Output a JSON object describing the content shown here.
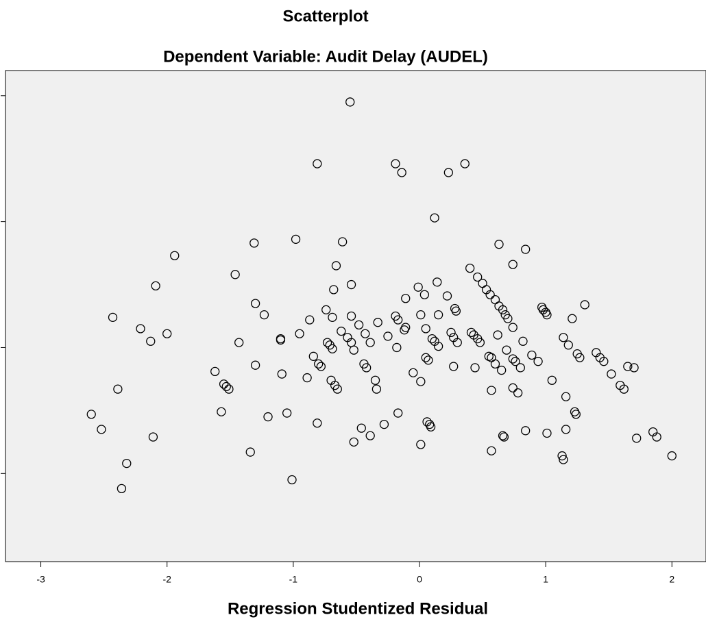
{
  "chart_data": {
    "type": "scatter",
    "title": "Scatterplot",
    "subtitle": "Dependent Variable: Audit Delay (AUDEL)",
    "x_label": "Regression Studentized Residual",
    "color": "#000000",
    "xlim": [
      -3.28,
      2.27
    ],
    "xticks": [
      -3,
      -2,
      -1,
      0,
      1,
      2
    ],
    "ylim": [
      -1.7,
      2.2
    ],
    "yticks": [
      -1,
      0,
      1,
      2
    ],
    "x": [
      -0.55,
      -0.81,
      -0.19,
      -0.14,
      0.36,
      0.23,
      0.12,
      -1.31,
      -0.98,
      -0.61,
      0.63,
      0.84,
      0.74,
      -1.94,
      -1.46,
      -2.09,
      -0.66,
      0.4,
      0.46,
      0.5,
      0.53,
      0.56,
      0.6,
      0.63,
      0.66,
      0.68,
      0.7,
      0.74,
      -0.54,
      -0.68,
      -0.01,
      0.14,
      0.04,
      -0.11,
      0.22,
      0.28,
      0.29,
      -2.43,
      -1.3,
      -1.23,
      -0.74,
      -0.69,
      -0.54,
      -0.48,
      -0.33,
      -0.19,
      -0.17,
      -0.11,
      0.01,
      0.15,
      0.97,
      0.98,
      1.0,
      1.01,
      1.31,
      1.21,
      -2.21,
      -2.13,
      -2.0,
      -1.43,
      -1.1,
      -1.1,
      -0.95,
      -0.87,
      -0.62,
      -0.73,
      -0.71,
      -0.69,
      -0.57,
      -0.54,
      -0.43,
      -0.39,
      -0.25,
      -0.18,
      -0.12,
      0.05,
      0.1,
      0.12,
      0.15,
      0.25,
      0.27,
      0.3,
      0.41,
      0.43,
      0.46,
      0.48,
      0.62,
      0.82,
      0.69,
      0.74,
      0.76,
      0.6,
      0.57,
      0.55,
      0.44,
      0.8,
      0.65,
      1.14,
      1.18,
      1.25,
      1.27,
      1.4,
      1.43,
      1.46,
      1.52,
      1.59,
      1.62,
      1.65,
      1.7,
      1.05,
      0.94,
      0.89,
      -1.62,
      -1.55,
      -1.53,
      -1.51,
      -1.09,
      -0.89,
      -1.3,
      -0.84,
      -0.8,
      -0.78,
      -0.7,
      -0.67,
      -0.65,
      -0.44,
      -0.42,
      -0.52,
      -0.35,
      -0.34,
      -0.05,
      0.01,
      0.05,
      0.07,
      0.27,
      0.74,
      0.78,
      0.57,
      1.16,
      -2.39,
      -2.6,
      -2.52,
      -2.11,
      -2.32,
      -2.36,
      -1.57,
      -1.2,
      -1.05,
      -0.81,
      -1.34,
      -1.01,
      -0.46,
      -0.39,
      -0.52,
      -0.28,
      -0.17,
      0.06,
      0.08,
      0.09,
      0.01,
      0.57,
      0.66,
      0.67,
      0.84,
      1.01,
      1.16,
      1.23,
      1.24,
      1.13,
      1.14,
      1.72,
      1.85,
      1.88,
      2.0
    ],
    "values": [
      1.95,
      1.46,
      1.46,
      1.39,
      1.46,
      1.39,
      1.03,
      0.83,
      0.86,
      0.84,
      0.82,
      0.78,
      0.66,
      0.73,
      0.58,
      0.49,
      0.65,
      0.63,
      0.56,
      0.51,
      0.46,
      0.42,
      0.38,
      0.33,
      0.3,
      0.26,
      0.23,
      0.16,
      0.5,
      0.46,
      0.48,
      0.52,
      0.42,
      0.39,
      0.41,
      0.31,
      0.29,
      0.24,
      0.35,
      0.26,
      0.3,
      0.24,
      0.25,
      0.18,
      0.2,
      0.25,
      0.22,
      0.16,
      0.26,
      0.26,
      0.32,
      0.3,
      0.28,
      0.26,
      0.34,
      0.23,
      0.15,
      0.05,
      0.11,
      0.04,
      0.07,
      0.06,
      0.11,
      0.22,
      0.13,
      0.04,
      0.02,
      -0.01,
      0.08,
      0.04,
      0.11,
      0.04,
      0.09,
      0.0,
      0.14,
      0.15,
      0.07,
      0.05,
      0.01,
      0.12,
      0.08,
      0.04,
      0.12,
      0.1,
      0.07,
      0.04,
      0.1,
      0.05,
      -0.02,
      -0.09,
      -0.11,
      -0.13,
      -0.08,
      -0.07,
      -0.16,
      -0.16,
      -0.18,
      0.08,
      0.02,
      -0.05,
      -0.08,
      -0.04,
      -0.08,
      -0.11,
      -0.21,
      -0.3,
      -0.33,
      -0.15,
      -0.16,
      -0.26,
      -0.11,
      -0.06,
      -0.19,
      -0.29,
      -0.31,
      -0.33,
      -0.21,
      -0.24,
      -0.14,
      -0.07,
      -0.13,
      -0.15,
      -0.26,
      -0.3,
      -0.33,
      -0.13,
      -0.16,
      -0.02,
      -0.26,
      -0.33,
      -0.2,
      -0.27,
      -0.08,
      -0.1,
      -0.15,
      -0.32,
      -0.36,
      -0.34,
      -0.39,
      -0.33,
      -0.53,
      -0.65,
      -0.71,
      -0.92,
      -1.12,
      -0.51,
      -0.55,
      -0.52,
      -0.6,
      -0.83,
      -1.05,
      -0.64,
      -0.7,
      -0.75,
      -0.61,
      -0.52,
      -0.59,
      -0.61,
      -0.63,
      -0.77,
      -0.82,
      -0.7,
      -0.71,
      -0.66,
      -0.68,
      -0.65,
      -0.51,
      -0.53,
      -0.86,
      -0.89,
      -0.72,
      -0.67,
      -0.71,
      -0.86
    ]
  }
}
